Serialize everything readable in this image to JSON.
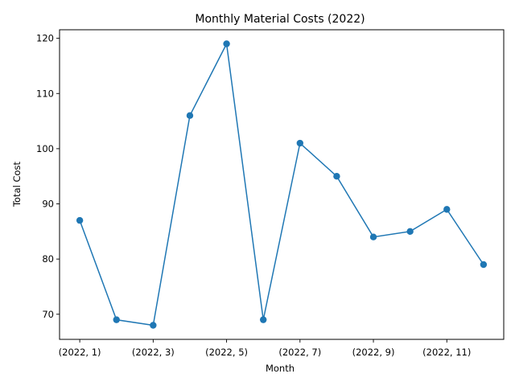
{
  "chart_data": {
    "type": "line",
    "title": "Monthly Material Costs (2022)",
    "xlabel": "Month",
    "ylabel": "Total Cost",
    "x": [
      "(2022, 1)",
      "(2022, 2)",
      "(2022, 3)",
      "(2022, 4)",
      "(2022, 5)",
      "(2022, 6)",
      "(2022, 7)",
      "(2022, 8)",
      "(2022, 9)",
      "(2022, 10)",
      "(2022, 11)",
      "(2022, 12)"
    ],
    "x_tick_labels": [
      "(2022, 1)",
      "(2022, 3)",
      "(2022, 5)",
      "(2022, 7)",
      "(2022, 9)",
      "(2022, 11)"
    ],
    "y_ticks": [
      70,
      80,
      90,
      100,
      110,
      120
    ],
    "ylim": [
      65.45,
      121.55
    ],
    "series": [
      {
        "values": [
          87,
          69,
          68,
          106,
          119,
          69,
          101,
          95,
          84,
          85,
          89,
          79
        ]
      }
    ],
    "marker": "circle",
    "grid": false,
    "line_color": "#1f77b4"
  }
}
